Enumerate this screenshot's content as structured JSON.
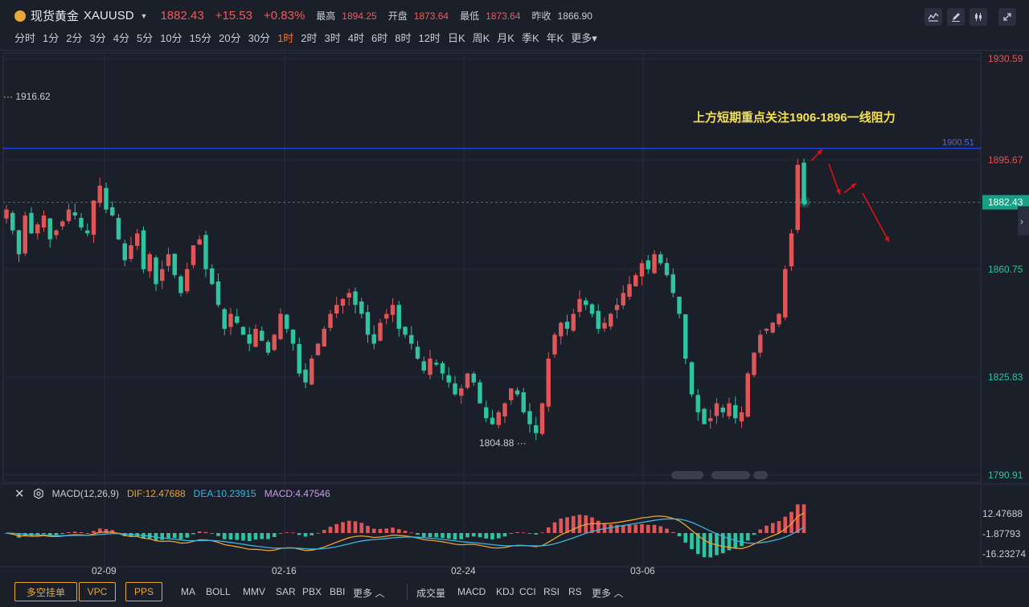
{
  "header": {
    "name": "现货黄金",
    "code": "XAUUSD",
    "price": "1882.43",
    "change": "+15.53",
    "change_pct": "+0.83%",
    "high_label": "最高",
    "high": "1894.25",
    "open_label": "开盘",
    "open": "1873.64",
    "low_label": "最低",
    "low": "1873.64",
    "prev_label": "昨收",
    "prev": "1866.90"
  },
  "toolbar": {
    "icons": [
      "indicator-icon",
      "draw-icon",
      "candle-icon",
      "fullscreen-icon"
    ]
  },
  "periods": [
    "分时",
    "1分",
    "2分",
    "3分",
    "4分",
    "5分",
    "10分",
    "15分",
    "20分",
    "30分",
    "1时",
    "2时",
    "3时",
    "4时",
    "6时",
    "8时",
    "12时",
    "日K",
    "周K",
    "月K",
    "季K",
    "年K",
    "更多"
  ],
  "active_period": "1时",
  "annotation": "上方短期重点关注1906-1896一线阻力",
  "colors": {
    "up": "#e05555",
    "down": "#2ec4a0",
    "resistance": "#1e40e0",
    "arrow": "#e01010",
    "annotation": "#f5e04a"
  },
  "price_axis": {
    "labels": [
      "1930.59",
      "1895.67",
      "1860.75",
      "1825.83",
      "1790.91"
    ],
    "current": "1882.43",
    "resistance_label": "1900.51"
  },
  "price_markers": {
    "max": "1916.62",
    "min": "1804.88"
  },
  "macd": {
    "title": "MACD(12,26,9)",
    "dif": "DIF:12.47688",
    "dea": "DEA:10.23915",
    "macd": "MACD:4.47546",
    "axis": [
      "12.47688",
      "-1.87793",
      "-16.23274"
    ]
  },
  "time_labels": [
    "02-09",
    "02-16",
    "02-24",
    "03-06"
  ],
  "bottom": {
    "buttons": [
      "多空挂单",
      "VPC",
      "PPS"
    ],
    "main_indicators": [
      "MA",
      "BOLL",
      "MMV",
      "SAR",
      "PBX",
      "BBI",
      "更多"
    ],
    "sub_indicators": [
      "成交量",
      "MACD",
      "KDJ",
      "CCI",
      "RSI",
      "RS",
      "更多"
    ]
  },
  "chart_data": {
    "type": "candlestick",
    "series": [
      {
        "name": "XAUUSD",
        "values": [
          1880,
          1873,
          1865,
          1878,
          1872,
          1875,
          1878,
          1870,
          1873,
          1876,
          1880,
          1878,
          1874,
          1872,
          1883,
          1888,
          1880,
          1878,
          1870,
          1863,
          1868,
          1872,
          1860,
          1865,
          1855,
          1860,
          1865,
          1858,
          1852,
          1860,
          1868,
          1870,
          1860,
          1855,
          1848,
          1840,
          1845,
          1842,
          1838,
          1835,
          1840,
          1836,
          1832,
          1838,
          1845,
          1840,
          1835,
          1825,
          1822,
          1830,
          1835,
          1840,
          1845,
          1848,
          1850,
          1852,
          1848,
          1845,
          1838,
          1835,
          1842,
          1845,
          1848,
          1840,
          1838,
          1835,
          1830,
          1826,
          1830,
          1828,
          1825,
          1822,
          1818,
          1820,
          1825,
          1822,
          1815,
          1810,
          1808,
          1812,
          1815,
          1820,
          1818,
          1812,
          1808,
          1805,
          1815,
          1830,
          1838,
          1842,
          1840,
          1845,
          1850,
          1848,
          1845,
          1840,
          1842,
          1845,
          1848,
          1852,
          1855,
          1858,
          1862,
          1860,
          1865,
          1862,
          1858,
          1852,
          1845,
          1830,
          1818,
          1812,
          1808,
          1810,
          1815,
          1812,
          1815,
          1810,
          1812,
          1825,
          1832,
          1838,
          1840,
          1842,
          1845,
          1860,
          1872,
          1895,
          1882
        ]
      }
    ],
    "ylim": [
      1790.91,
      1930.59
    ],
    "y_ticks": [
      1930.59,
      1895.67,
      1860.75,
      1825.83,
      1790.91
    ],
    "x_ticks": [
      "02-09",
      "02-16",
      "02-24",
      "03-06"
    ],
    "resistance_line": 1900.51,
    "current_price": 1882.43,
    "annotations": [
      "上方短期重点关注1906-1896一线阻力"
    ],
    "grid": true,
    "macd": {
      "dif": 12.47688,
      "dea": 10.23915,
      "macd": 4.47546,
      "ylim": [
        -16.23274,
        12.47688
      ]
    }
  }
}
